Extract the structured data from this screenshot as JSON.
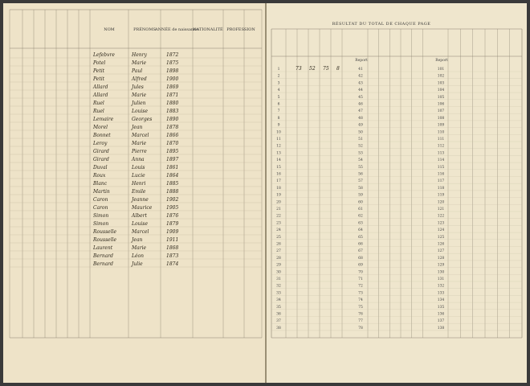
{
  "left_page": {
    "headers": [
      "NOM",
      "PRÉNOMS",
      "ANNÉE de naissance",
      "NATIONALITÉ",
      "PROFESSION"
    ],
    "rows": [
      [
        "Lefebvre",
        "Henry",
        "1872"
      ],
      [
        "Potel",
        "Marie",
        "1875"
      ],
      [
        "Petit",
        "Paul",
        "1898"
      ],
      [
        "Petit",
        "Alfred",
        "1900"
      ],
      [
        "Allard",
        "Jules",
        "1869"
      ],
      [
        "Allard",
        "Marie",
        "1871"
      ],
      [
        "Ruel",
        "Julien",
        "1880"
      ],
      [
        "Ruel",
        "Louise",
        "1883"
      ],
      [
        "Lemaire",
        "Georges",
        "1890"
      ],
      [
        "Morel",
        "Jean",
        "1878"
      ],
      [
        "Bonnet",
        "Marcel",
        "1866"
      ],
      [
        "Leroy",
        "Marie",
        "1870"
      ],
      [
        "Girard",
        "Pierre",
        "1895"
      ],
      [
        "Girard",
        "Anna",
        "1897"
      ],
      [
        "Duval",
        "Louis",
        "1861"
      ],
      [
        "Roux",
        "Lucie",
        "1864"
      ],
      [
        "Blanc",
        "Henri",
        "1885"
      ],
      [
        "Martin",
        "Emile",
        "1888"
      ],
      [
        "Caron",
        "Jeanne",
        "1902"
      ],
      [
        "Caron",
        "Maurice",
        "1905"
      ],
      [
        "Simon",
        "Albert",
        "1876"
      ],
      [
        "Simon",
        "Louise",
        "1879"
      ],
      [
        "Rousselle",
        "Marcel",
        "1909"
      ],
      [
        "Rousselle",
        "Jean",
        "1911"
      ],
      [
        "Laurent",
        "Marie",
        "1868"
      ],
      [
        "Bernard",
        "Léon",
        "1873"
      ],
      [
        "Bernard",
        "Julie",
        "1874"
      ]
    ]
  },
  "right_page": {
    "title": "RÉSULTAT DU TOTAL DE CHAQUE PAGE",
    "report": "Report",
    "col1": [
      1,
      2,
      3,
      4,
      5,
      6,
      7,
      8,
      9,
      10,
      11,
      12,
      13,
      14,
      15,
      16,
      17,
      18,
      19,
      20,
      21,
      22,
      23,
      24,
      25,
      26,
      27,
      28,
      29,
      30,
      31,
      32,
      33,
      34,
      35,
      36,
      37,
      38
    ],
    "col2": [
      41,
      42,
      43,
      44,
      45,
      46,
      47,
      48,
      49,
      50,
      51,
      52,
      53,
      54,
      55,
      56,
      57,
      58,
      59,
      60,
      61,
      62,
      63,
      64,
      65,
      66,
      67,
      68,
      69,
      70,
      71,
      72,
      73,
      74,
      75,
      76,
      77,
      78
    ],
    "col3": [
      101,
      102,
      103,
      104,
      105,
      106,
      107,
      108,
      109,
      110,
      111,
      112,
      113,
      114,
      115,
      116,
      117,
      118,
      119,
      120,
      121,
      122,
      123,
      124,
      125,
      126,
      127,
      128,
      129,
      130,
      131,
      132,
      133,
      134,
      135,
      136,
      137,
      138
    ],
    "first_row_entries": [
      "73",
      "52",
      "75",
      "8"
    ]
  }
}
